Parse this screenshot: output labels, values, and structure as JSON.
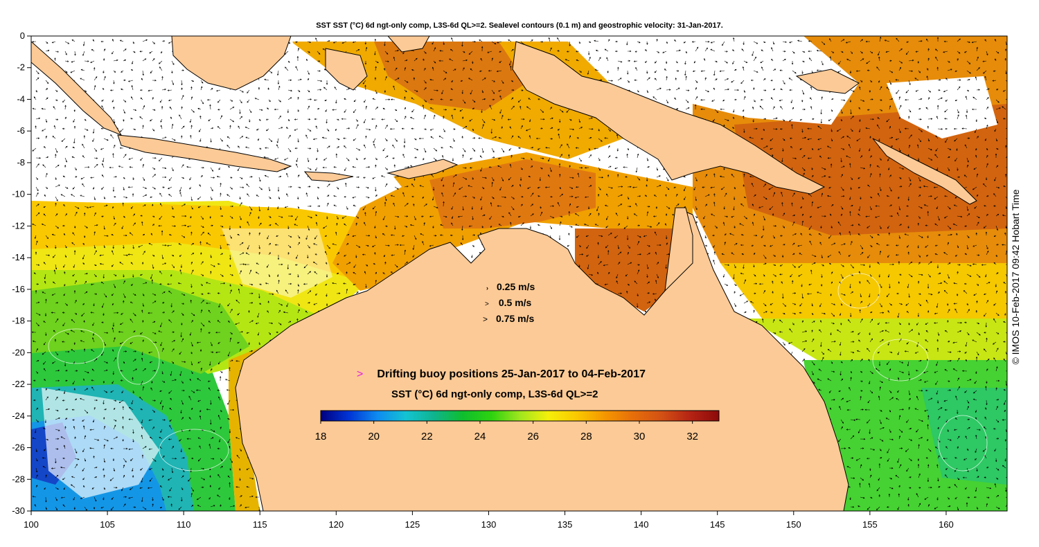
{
  "title": "SST SST (°C) 6d ngt-only comp, L3S-6d QL>=2. Sealevel contours (0.1 m) and geostrophic velocity: 31-Jan-2017.",
  "credit": "© IMOS 10-Feb-2017 09:42 Hobart Time",
  "velocity_legend": [
    {
      "label": "0.25 m/s",
      "arrow": "›"
    },
    {
      "label": "0.5 m/s",
      "arrow": ">"
    },
    {
      "label": "0.75 m/s",
      "arrow": ">"
    }
  ],
  "buoy_legend": {
    "marker": ">",
    "text": "Drifting buoy positions 25-Jan-2017 to 04-Feb-2017"
  },
  "colorbar": {
    "title": "SST (°C) 6d ngt-only comp, L3S-6d QL>=2",
    "min": 18,
    "max": 33,
    "ticks": [
      "18",
      "20",
      "22",
      "24",
      "26",
      "28",
      "30",
      "32"
    ],
    "colors": [
      "#00007f",
      "#0035d6",
      "#0e8cf0",
      "#14c3d2",
      "#0fb48c",
      "#0fbe2d",
      "#2dd20f",
      "#a0e61e",
      "#f5ef0a",
      "#fac800",
      "#f59600",
      "#e66e0a",
      "#d25014",
      "#b42314",
      "#8c0a0a"
    ]
  },
  "map": {
    "x_range": [
      100,
      164
    ],
    "y_range": [
      -30,
      0
    ],
    "x_ticks": [
      "100",
      "105",
      "110",
      "115",
      "120",
      "125",
      "130",
      "135",
      "140",
      "145",
      "150",
      "155",
      "160"
    ],
    "y_ticks": [
      "0",
      "-2",
      "-4",
      "-6",
      "-8",
      "-10",
      "-12",
      "-14",
      "-16",
      "-18",
      "-20",
      "-22",
      "-24",
      "-26",
      "-28",
      "-30"
    ],
    "land_color": "#fcca96",
    "no_data_color": "#ffffff"
  }
}
